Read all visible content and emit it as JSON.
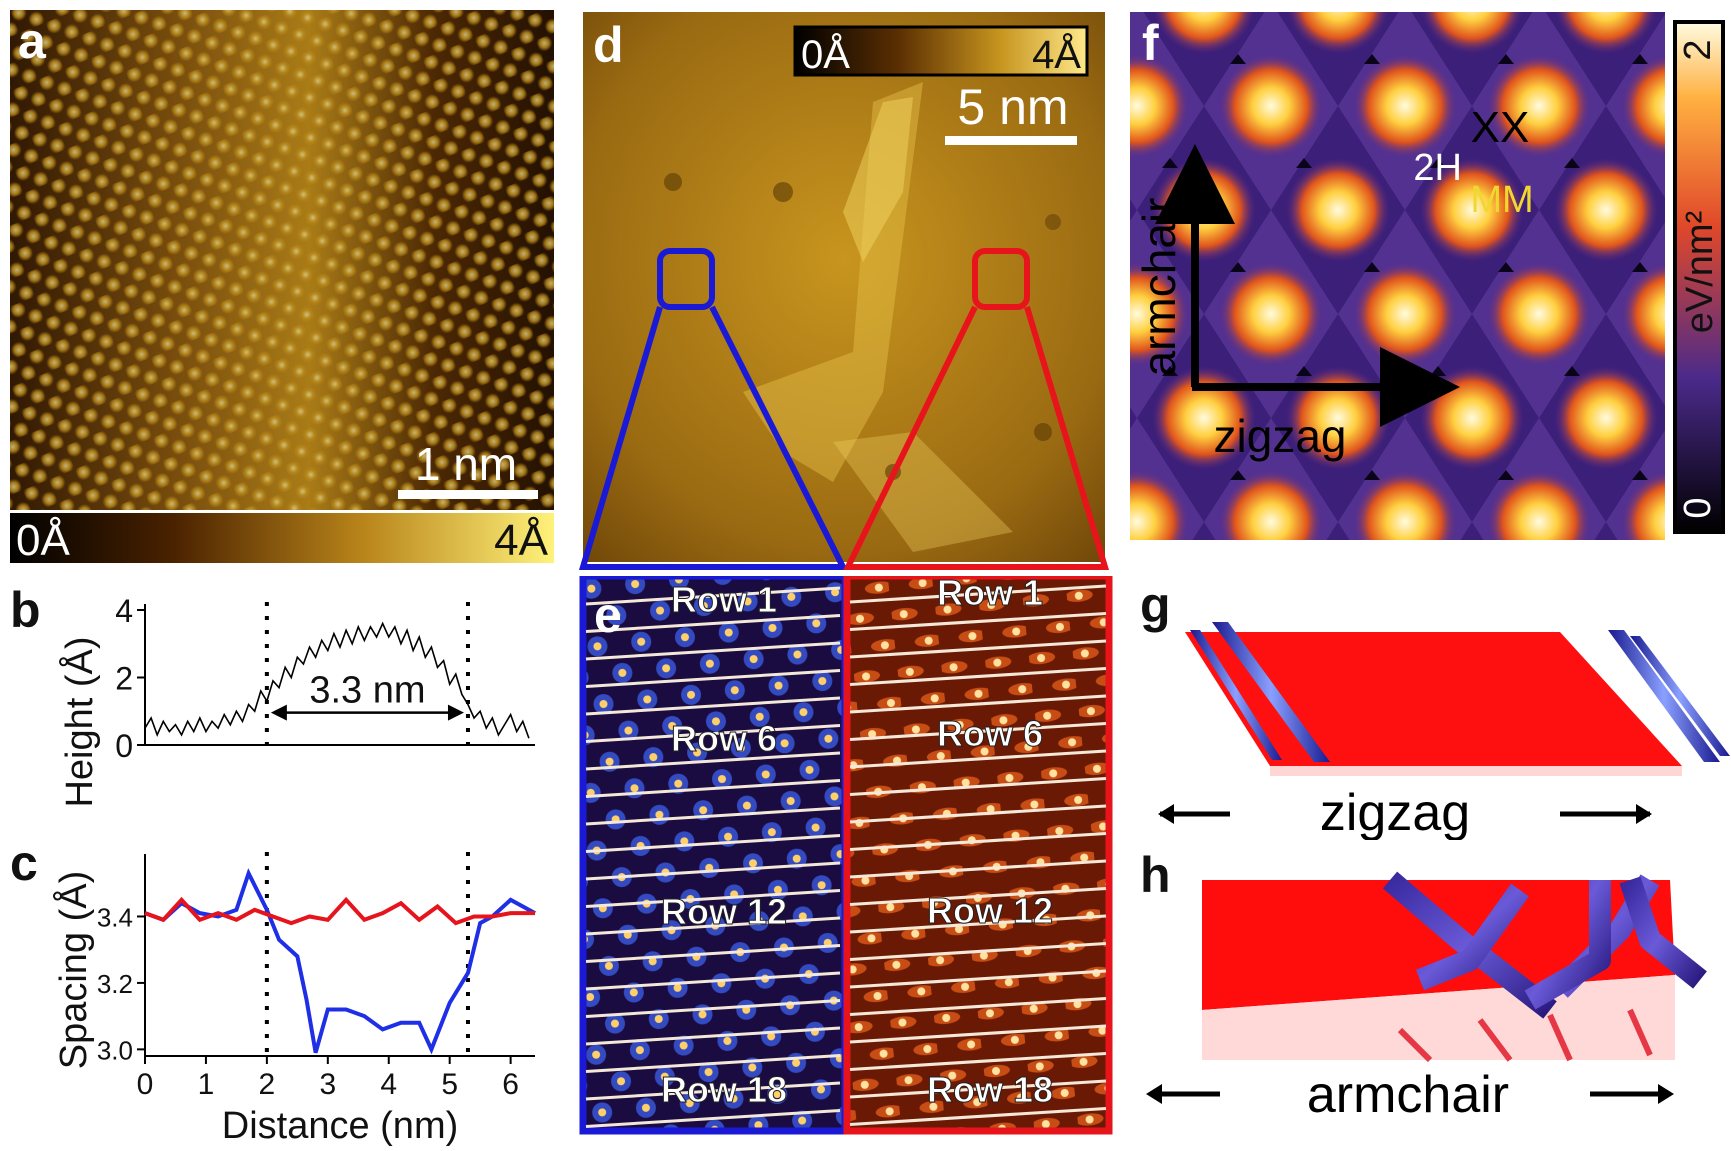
{
  "panel_labels": {
    "a": "a",
    "b": "b",
    "c": "c",
    "d": "d",
    "e": "e",
    "f": "f",
    "g": "g",
    "h": "h"
  },
  "panel_a": {
    "scalebar": "1 nm",
    "cbar_min": "0Å",
    "cbar_max": "4Å"
  },
  "panel_d": {
    "cbar_min": "0Å",
    "cbar_max": "4Å",
    "scalebar": "5 nm"
  },
  "panel_e": {
    "rows_left": [
      "Row 1",
      "Row 6",
      "Row 12",
      "Row 18"
    ],
    "rows_right": [
      "Row 1",
      "Row 6",
      "Row 12",
      "Row 18"
    ]
  },
  "panel_f": {
    "xx": "XX",
    "h2": "2H",
    "mm": "MM",
    "axis_v": "armchair",
    "axis_h": "zigzag",
    "cbar_max": "2",
    "cbar_min": "0",
    "cbar_label": "eV/nm²"
  },
  "panel_g": {
    "direction": "zigzag"
  },
  "panel_h": {
    "direction": "armchair"
  },
  "colors": {
    "blue_box": "#1a1ad6",
    "red_box": "#e8141c",
    "series_blue": "#1f2fe6",
    "series_red": "#e6141c"
  },
  "chart_data": [
    {
      "type": "line",
      "panel": "b",
      "ylabel": "Height (Å)",
      "yticks": [
        "0",
        "2",
        "4"
      ],
      "ylim": [
        0,
        4
      ],
      "xlim": [
        0,
        6.4
      ],
      "annotation": "3.3 nm",
      "dashed_x": [
        2.0,
        5.3
      ],
      "series": [
        {
          "x": [
            0,
            0.1,
            0.2,
            0.3,
            0.4,
            0.5,
            0.6,
            0.7,
            0.8,
            0.9,
            1.0,
            1.1,
            1.2,
            1.3,
            1.4,
            1.5,
            1.6,
            1.7,
            1.8,
            1.9,
            2.0,
            2.1,
            2.2,
            2.3,
            2.4,
            2.5,
            2.6,
            2.7,
            2.8,
            2.9,
            3.0,
            3.1,
            3.2,
            3.3,
            3.4,
            3.5,
            3.6,
            3.7,
            3.8,
            3.9,
            4.0,
            4.1,
            4.2,
            4.3,
            4.4,
            4.5,
            4.6,
            4.7,
            4.8,
            4.9,
            5.0,
            5.1,
            5.2,
            5.3,
            5.4,
            5.5,
            5.6,
            5.7,
            5.8,
            5.9,
            6.0,
            6.1,
            6.2,
            6.3
          ],
          "values": [
            0.5,
            0.8,
            0.3,
            0.7,
            0.4,
            0.6,
            0.3,
            0.7,
            0.4,
            0.8,
            0.4,
            0.7,
            0.5,
            0.9,
            0.6,
            1.0,
            0.7,
            1.2,
            1.0,
            1.6,
            1.3,
            1.9,
            1.7,
            2.3,
            2.0,
            2.6,
            2.4,
            2.9,
            2.6,
            3.1,
            2.8,
            3.3,
            2.9,
            3.4,
            3.0,
            3.5,
            3.1,
            3.5,
            3.2,
            3.6,
            3.2,
            3.5,
            3.0,
            3.4,
            2.8,
            3.2,
            2.6,
            2.9,
            2.3,
            2.5,
            1.8,
            2.1,
            1.5,
            1.2,
            0.8,
            1.0,
            0.5,
            0.8,
            0.3,
            0.6,
            0.9,
            0.4,
            0.7,
            0.2
          ]
        }
      ]
    },
    {
      "type": "line",
      "panel": "c",
      "ylabel": "Spacing (Å)",
      "xlabel": "Distance (nm)",
      "xticks": [
        "0",
        "1",
        "2",
        "3",
        "4",
        "5",
        "6"
      ],
      "yticks": [
        "3.0",
        "3.2",
        "3.4"
      ],
      "ylim": [
        2.98,
        3.57
      ],
      "xlim": [
        0,
        6.4
      ],
      "dashed_x": [
        2.0,
        5.3
      ],
      "series": [
        {
          "color": "blue",
          "x": [
            0,
            0.3,
            0.6,
            0.9,
            1.2,
            1.5,
            1.7,
            2.0,
            2.2,
            2.5,
            2.65,
            2.8,
            3.0,
            3.3,
            3.6,
            3.9,
            4.2,
            4.5,
            4.7,
            5.0,
            5.3,
            5.5,
            5.7,
            6.0,
            6.4
          ],
          "values": [
            3.41,
            3.39,
            3.44,
            3.41,
            3.4,
            3.42,
            3.53,
            3.42,
            3.33,
            3.28,
            3.15,
            2.99,
            3.12,
            3.12,
            3.1,
            3.06,
            3.08,
            3.08,
            3.0,
            3.14,
            3.23,
            3.38,
            3.4,
            3.45,
            3.41
          ]
        },
        {
          "color": "red",
          "x": [
            0,
            0.3,
            0.6,
            0.9,
            1.2,
            1.5,
            1.8,
            2.1,
            2.4,
            2.7,
            3.0,
            3.3,
            3.6,
            3.9,
            4.2,
            4.5,
            4.8,
            5.1,
            5.4,
            5.7,
            6.0,
            6.4
          ],
          "values": [
            3.41,
            3.39,
            3.45,
            3.39,
            3.41,
            3.39,
            3.42,
            3.4,
            3.38,
            3.4,
            3.39,
            3.45,
            3.39,
            3.41,
            3.44,
            3.39,
            3.43,
            3.38,
            3.4,
            3.4,
            3.41,
            3.41
          ]
        }
      ]
    }
  ]
}
